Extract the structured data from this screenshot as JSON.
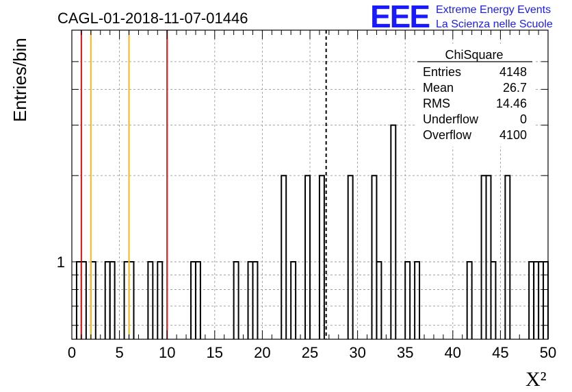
{
  "title": "CAGL-01-2018-11-07-01446",
  "logo": {
    "mark": "EEE",
    "line1": "Extreme Energy Events",
    "line2": "La Scienza nelle Scuole"
  },
  "stats": {
    "name": "ChiSquare",
    "rows": [
      {
        "label": "Entries",
        "value": "4148"
      },
      {
        "label": "Mean",
        "value": "26.7"
      },
      {
        "label": "RMS",
        "value": "14.46"
      },
      {
        "label": "Underflow",
        "value": "0"
      },
      {
        "label": "Overflow",
        "value": "4100"
      }
    ]
  },
  "chart_data": {
    "type": "histogram",
    "title": "CAGL-01-2018-11-07-01446",
    "xlabel": "X²",
    "ylabel": "Entries/bin",
    "xlim": [
      0,
      50
    ],
    "ylim": [
      0.5,
      6
    ],
    "ylog": true,
    "grid": true,
    "bin_width": 0.5,
    "x_ticks": [
      0,
      5,
      10,
      15,
      20,
      25,
      30,
      35,
      40,
      45,
      50
    ],
    "y_ticks": [
      1
    ],
    "bins": [
      {
        "x": 0.5,
        "y": 1
      },
      {
        "x": 1.0,
        "y": 1
      },
      {
        "x": 2.0,
        "y": 1
      },
      {
        "x": 3.5,
        "y": 1
      },
      {
        "x": 4.0,
        "y": 1
      },
      {
        "x": 5.5,
        "y": 1
      },
      {
        "x": 6.0,
        "y": 1
      },
      {
        "x": 8.0,
        "y": 1
      },
      {
        "x": 9.0,
        "y": 1
      },
      {
        "x": 12.5,
        "y": 1
      },
      {
        "x": 13.0,
        "y": 1
      },
      {
        "x": 17.0,
        "y": 1
      },
      {
        "x": 18.5,
        "y": 1
      },
      {
        "x": 19.0,
        "y": 1
      },
      {
        "x": 22.0,
        "y": 2
      },
      {
        "x": 23.0,
        "y": 1
      },
      {
        "x": 24.5,
        "y": 2
      },
      {
        "x": 26.0,
        "y": 2
      },
      {
        "x": 29.0,
        "y": 2
      },
      {
        "x": 31.5,
        "y": 2
      },
      {
        "x": 32.0,
        "y": 1
      },
      {
        "x": 33.5,
        "y": 3
      },
      {
        "x": 35.0,
        "y": 1
      },
      {
        "x": 36.0,
        "y": 1
      },
      {
        "x": 41.5,
        "y": 1
      },
      {
        "x": 43.0,
        "y": 2
      },
      {
        "x": 43.5,
        "y": 2
      },
      {
        "x": 44.0,
        "y": 1
      },
      {
        "x": 45.5,
        "y": 2
      },
      {
        "x": 48.0,
        "y": 1
      },
      {
        "x": 48.5,
        "y": 1
      },
      {
        "x": 49.0,
        "y": 1
      },
      {
        "x": 49.5,
        "y": 1
      }
    ],
    "reference_lines": [
      {
        "x": 1.0,
        "color": "#e02020"
      },
      {
        "x": 2.0,
        "color": "#f0c020"
      },
      {
        "x": 6.0,
        "color": "#f0c020"
      },
      {
        "x": 10.0,
        "color": "#e02020"
      }
    ],
    "mean_line": {
      "x": 26.7,
      "style": "dashed",
      "color": "#000000"
    }
  }
}
